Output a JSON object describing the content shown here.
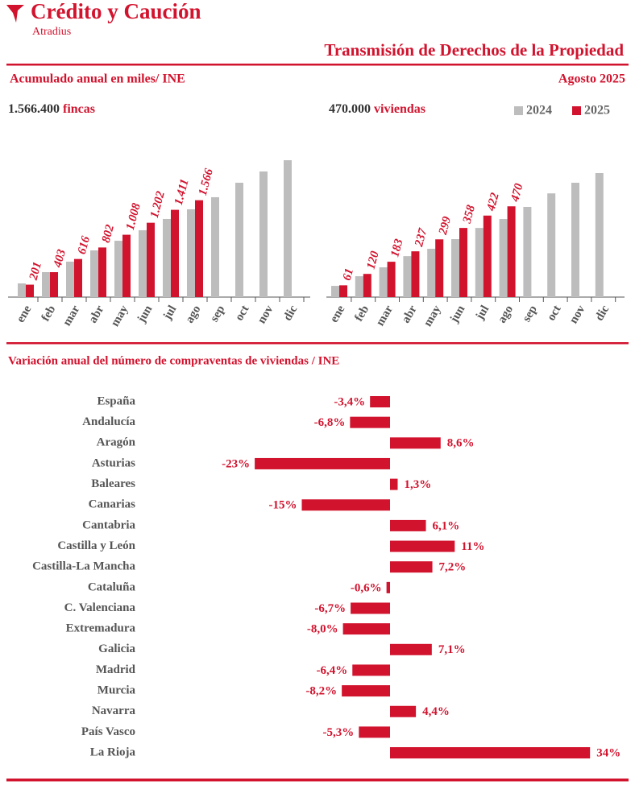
{
  "header": {
    "brand": "Crédito y Caución",
    "sub_brand": "Atradius",
    "title": "Transmisión de Derechos de la Propiedad",
    "subtitle": "Acumulado anual en miles/ INE",
    "period": "Agosto 2025"
  },
  "chart_data": [
    {
      "type": "bar",
      "headline": "1.566.400",
      "headline_unit": "fincas",
      "categories": [
        "ene",
        "feb",
        "mar",
        "abr",
        "may",
        "jun",
        "jul",
        "ago",
        "sep",
        "oct",
        "nov",
        "dic"
      ],
      "series": [
        {
          "color": "#bdbdbd",
          "values": [
            221,
            404,
            573,
            755,
            911,
            1081,
            1263,
            1419,
            1615,
            1849,
            2031,
            2213
          ]
        },
        {
          "color": "#d2132e",
          "values": [
            201,
            403,
            616,
            802,
            1008,
            1202,
            1411,
            1566,
            null,
            null,
            null,
            null
          ],
          "value_labels": [
            "201",
            "403",
            "616",
            "802",
            "1.008",
            "1.202",
            "1.411",
            "1.566",
            null,
            null,
            null,
            null
          ]
        }
      ]
    },
    {
      "type": "bar",
      "headline": "470.000",
      "headline_unit": "viviendas",
      "categories": [
        "ene",
        "feb",
        "mar",
        "abr",
        "may",
        "jun",
        "jul",
        "ago",
        "sep",
        "oct",
        "nov",
        "dic"
      ],
      "series": [
        {
          "name": "2024",
          "color": "#bdbdbd",
          "values": [
            58,
            108,
            154,
            212,
            250,
            300,
            358,
            404,
            467,
            537,
            592,
            642
          ]
        },
        {
          "name": "2025",
          "color": "#d2132e",
          "values": [
            61,
            120,
            183,
            237,
            299,
            358,
            422,
            470,
            null,
            null,
            null,
            null
          ]
        }
      ]
    },
    {
      "type": "hbar",
      "title": "Variación anual del número de compraventas de viviendas / INE",
      "color": "#d2132e",
      "categories": [
        "España",
        "Andalucía",
        "Aragón",
        "Asturias",
        "Baleares",
        "Canarias",
        "Cantabria",
        "Castilla y León",
        "Castilla-La Mancha",
        "Cataluña",
        "C. Valenciana",
        "Extremadura",
        "Galicia",
        "Madrid",
        "Murcia",
        "Navarra",
        "País Vasco",
        "La Rioja"
      ],
      "values": [
        -3.4,
        -6.8,
        8.6,
        -23,
        1.3,
        -15,
        6.1,
        11,
        7.2,
        -0.6,
        -6.7,
        -8.0,
        7.1,
        -6.4,
        -8.2,
        4.4,
        -5.3,
        34
      ],
      "value_labels": [
        "-3,4%",
        "-6,8%",
        "8,6%",
        "-23%",
        "1,3%",
        "-15%",
        "6,1%",
        "11%",
        "7,2%",
        "-0,6%",
        "-6,7%",
        "-8,0%",
        "7,1%",
        "-6,4%",
        "-8,2%",
        "4,4%",
        "-5,3%",
        "34%"
      ]
    }
  ]
}
